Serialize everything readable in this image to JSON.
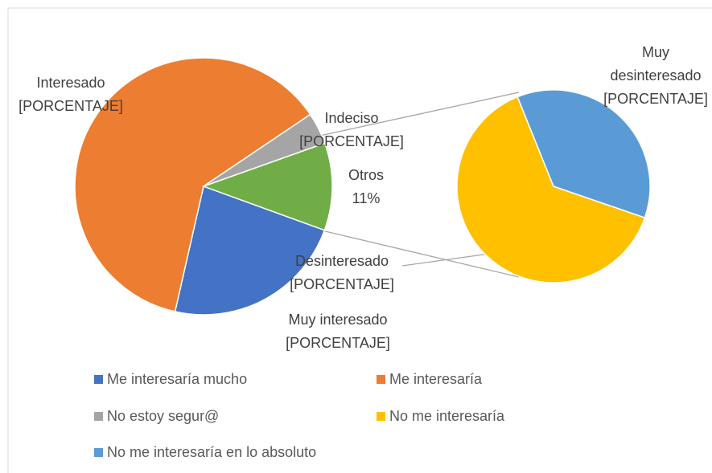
{
  "chart_data": {
    "type": "pie_of_pie",
    "categories": [
      "Me interesaría mucho",
      "Me interesaría",
      "No estoy segur@",
      "No me interesaría",
      "No me interesaría en lo absoluto"
    ],
    "colors": [
      "#4472c4",
      "#ed7d31",
      "#a5a5a5",
      "#ffc000",
      "#5b9bd5"
    ],
    "labels": [
      "Muy interesado",
      "Interesado",
      "Indeciso",
      "Desinteresado",
      "Muy desinteresado"
    ],
    "values": [
      23,
      62,
      4,
      7,
      4
    ],
    "value_labels": [
      "[PORCENTAJE]",
      "[PORCENTAJE]",
      "[PORCENTAJE]",
      "[PORCENTAJE]",
      "[PORCENTAJE]"
    ],
    "other": {
      "label": "Otros",
      "value": 11,
      "value_label": "11%",
      "color": "#70ad47"
    }
  }
}
